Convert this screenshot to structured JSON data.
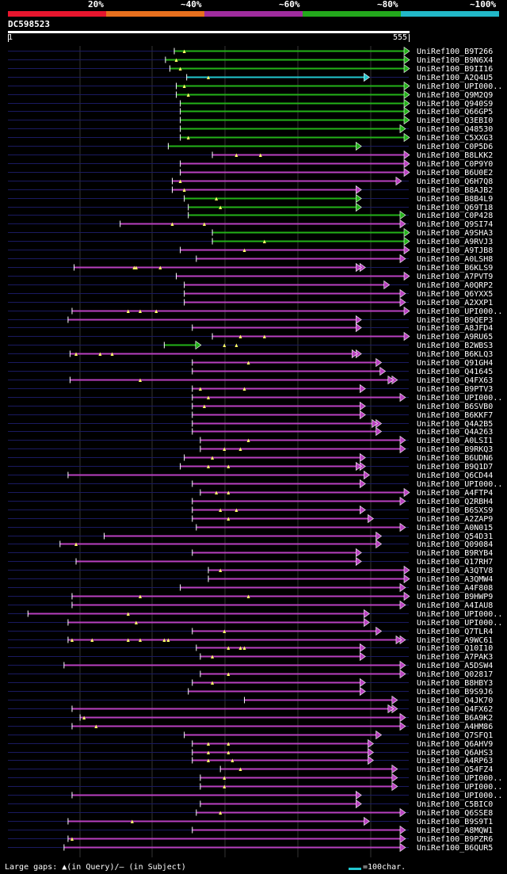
{
  "legend": {
    "segments": [
      {
        "color": "#e8162e",
        "label": "20%"
      },
      {
        "color": "#e8701e",
        "label": "~40%"
      },
      {
        "color": "#a02c9e",
        "label": "~60%"
      },
      {
        "color": "#23a81c",
        "label": "~80%"
      },
      {
        "color": "#22b8c8",
        "label": "~100%"
      }
    ]
  },
  "query": {
    "id": "DC598523",
    "start": "1",
    "end": "555"
  },
  "colors": {
    "green": "#23b219",
    "magenta": "#b940c0",
    "cyan": "#22c8d0",
    "backbone": "#1a1a60",
    "grid": "#333333"
  },
  "hits": [
    {
      "label": "UniRef100_B9T266",
      "color": "green",
      "start": 0.415,
      "end": 1.0,
      "ends": 1,
      "gaps": [
        0.44
      ]
    },
    {
      "label": "UniRef100_B9N6X4",
      "color": "green",
      "start": 0.393,
      "end": 1.0,
      "ends": 1,
      "gaps": [
        0.42
      ]
    },
    {
      "label": "UniRef100_B9II16",
      "color": "green",
      "start": 0.404,
      "end": 1.0,
      "ends": 1,
      "gaps": [
        0.43
      ]
    },
    {
      "label": "UniRef100_A2Q4U5",
      "color": "cyan",
      "start": 0.446,
      "end": 0.9,
      "ends": 1,
      "gaps": [
        0.5
      ]
    },
    {
      "label": "UniRef100_UPI000..",
      "color": "green",
      "start": 0.42,
      "end": 1.0,
      "ends": 1,
      "gaps": [
        0.44
      ]
    },
    {
      "label": "UniRef100_Q9M2Q9",
      "color": "green",
      "start": 0.42,
      "end": 1.0,
      "ends": 1,
      "gaps": [
        0.45
      ]
    },
    {
      "label": "UniRef100_Q940S9",
      "color": "green",
      "start": 0.43,
      "end": 1.0,
      "ends": 1,
      "gaps": []
    },
    {
      "label": "UniRef100_Q66GP5",
      "color": "green",
      "start": 0.43,
      "end": 1.0,
      "ends": 1,
      "gaps": []
    },
    {
      "label": "UniRef100_Q3EBI0",
      "color": "green",
      "start": 0.43,
      "end": 1.0,
      "ends": 1,
      "gaps": []
    },
    {
      "label": "UniRef100_Q48530",
      "color": "green",
      "start": 0.43,
      "end": 0.99,
      "ends": 1,
      "gaps": []
    },
    {
      "label": "UniRef100_C5XXG3",
      "color": "green",
      "start": 0.43,
      "end": 1.0,
      "ends": 1,
      "gaps": [
        0.45
      ]
    },
    {
      "label": "UniRef100_C0P5D6",
      "color": "green",
      "start": 0.4,
      "end": 0.88,
      "ends": 1,
      "gaps": []
    },
    {
      "label": "UniRef100_B8LKK2",
      "color": "magenta",
      "start": 0.51,
      "end": 1.0,
      "ends": 1,
      "gaps": [
        0.57,
        0.63
      ]
    },
    {
      "label": "UniRef100_C0P9Y0",
      "color": "magenta",
      "start": 0.43,
      "end": 1.0,
      "ends": 1,
      "gaps": []
    },
    {
      "label": "UniRef100_B6U0E2",
      "color": "magenta",
      "start": 0.43,
      "end": 1.0,
      "ends": 1,
      "gaps": []
    },
    {
      "label": "UniRef100_Q6H7Q8",
      "color": "magenta",
      "start": 0.41,
      "end": 0.98,
      "ends": 1,
      "gaps": [
        0.43
      ]
    },
    {
      "label": "UniRef100_B8AJB2",
      "color": "magenta",
      "start": 0.41,
      "end": 0.88,
      "ends": 1,
      "gaps": [
        0.44
      ]
    },
    {
      "label": "UniRef100_B8B4L9",
      "color": "green",
      "start": 0.44,
      "end": 0.88,
      "ends": 1,
      "gaps": [
        0.52
      ]
    },
    {
      "label": "UniRef100_Q69T18",
      "color": "green",
      "start": 0.45,
      "end": 0.88,
      "ends": 1,
      "gaps": [
        0.53
      ]
    },
    {
      "label": "UniRef100_C0P428",
      "color": "green",
      "start": 0.45,
      "end": 0.99,
      "ends": 1,
      "gaps": []
    },
    {
      "label": "UniRef100_Q9SI74",
      "color": "magenta",
      "start": 0.28,
      "end": 0.99,
      "ends": 1,
      "gaps": [
        0.41,
        0.49
      ]
    },
    {
      "label": "UniRef100_A9SHA3",
      "color": "green",
      "start": 0.51,
      "end": 1.0,
      "ends": 1,
      "gaps": []
    },
    {
      "label": "UniRef100_A9RVJ3",
      "color": "green",
      "start": 0.51,
      "end": 1.0,
      "ends": 1,
      "gaps": [
        0.64
      ]
    },
    {
      "label": "UniRef100_A9TJB8",
      "color": "magenta",
      "start": 0.43,
      "end": 1.0,
      "ends": 1,
      "gaps": [
        0.59
      ]
    },
    {
      "label": "UniRef100_A0LSH8",
      "color": "magenta",
      "start": 0.47,
      "end": 0.99,
      "ends": 1,
      "gaps": []
    },
    {
      "label": "UniRef100_B6KLS9",
      "color": "magenta",
      "start": 0.165,
      "end": 0.89,
      "ends": 2,
      "gaps": [
        0.315,
        0.32,
        0.38
      ]
    },
    {
      "label": "UniRef100_A7PVT9",
      "color": "magenta",
      "start": 0.42,
      "end": 1.0,
      "ends": 1,
      "gaps": []
    },
    {
      "label": "UniRef100_A0QRP2",
      "color": "magenta",
      "start": 0.44,
      "end": 0.95,
      "ends": 1,
      "gaps": []
    },
    {
      "label": "UniRef100_Q6YXX5",
      "color": "magenta",
      "start": 0.44,
      "end": 0.99,
      "ends": 1,
      "gaps": []
    },
    {
      "label": "UniRef100_A2XXP1",
      "color": "magenta",
      "start": 0.44,
      "end": 0.99,
      "ends": 1,
      "gaps": []
    },
    {
      "label": "UniRef100_UPI000..",
      "color": "magenta",
      "start": 0.16,
      "end": 1.0,
      "ends": 1,
      "gaps": [
        0.3,
        0.33,
        0.37
      ]
    },
    {
      "label": "UniRef100_B9QEP3",
      "color": "magenta",
      "start": 0.15,
      "end": 0.88,
      "ends": 1,
      "gaps": []
    },
    {
      "label": "UniRef100_A8JFD4",
      "color": "magenta",
      "start": 0.46,
      "end": 0.88,
      "ends": 1,
      "gaps": []
    },
    {
      "label": "UniRef100_A9RU65",
      "color": "magenta",
      "start": 0.51,
      "end": 1.0,
      "ends": 1,
      "gaps": [
        0.58,
        0.64
      ]
    },
    {
      "label": "UniRef100_B2WBS3",
      "color": "green",
      "start": 0.39,
      "end": 0.48,
      "ends": 1,
      "gaps": [
        0.54,
        0.57
      ]
    },
    {
      "label": "UniRef100_B6KLQ3",
      "color": "magenta",
      "start": 0.155,
      "end": 0.88,
      "ends": 2,
      "gaps": [
        0.17,
        0.23,
        0.26
      ]
    },
    {
      "label": "UniRef100_Q91GH4",
      "color": "magenta",
      "start": 0.46,
      "end": 0.93,
      "ends": 1,
      "gaps": [
        0.6
      ]
    },
    {
      "label": "UniRef100_Q41645",
      "color": "magenta",
      "start": 0.46,
      "end": 0.94,
      "ends": 1,
      "gaps": []
    },
    {
      "label": "UniRef100_Q4FX63",
      "color": "magenta",
      "start": 0.155,
      "end": 0.97,
      "ends": 2,
      "gaps": [
        0.33
      ]
    },
    {
      "label": "UniRef100_B9PTV3",
      "color": "magenta",
      "start": 0.46,
      "end": 0.89,
      "ends": 1,
      "gaps": [
        0.48,
        0.59
      ]
    },
    {
      "label": "UniRef100_UPI000..",
      "color": "magenta",
      "start": 0.46,
      "end": 0.99,
      "ends": 1,
      "gaps": [
        0.5
      ]
    },
    {
      "label": "UniRef100_B6SVB0",
      "color": "magenta",
      "start": 0.46,
      "end": 0.89,
      "ends": 1,
      "gaps": [
        0.49
      ]
    },
    {
      "label": "UniRef100_B6KKF7",
      "color": "magenta",
      "start": 0.46,
      "end": 0.89,
      "ends": 1,
      "gaps": []
    },
    {
      "label": "UniRef100_Q4A2B5",
      "color": "magenta",
      "start": 0.46,
      "end": 0.93,
      "ends": 2,
      "gaps": []
    },
    {
      "label": "UniRef100_Q4A263",
      "color": "magenta",
      "start": 0.46,
      "end": 0.93,
      "ends": 1,
      "gaps": []
    },
    {
      "label": "UniRef100_A0LSI1",
      "color": "magenta",
      "start": 0.48,
      "end": 0.99,
      "ends": 1,
      "gaps": [
        0.6
      ]
    },
    {
      "label": "UniRef100_B9RKQ3",
      "color": "magenta",
      "start": 0.48,
      "end": 0.99,
      "ends": 1,
      "gaps": [
        0.54,
        0.58
      ]
    },
    {
      "label": "UniRef100_B6UDN6",
      "color": "magenta",
      "start": 0.44,
      "end": 0.89,
      "ends": 1,
      "gaps": [
        0.51
      ]
    },
    {
      "label": "UniRef100_B9Q1D7",
      "color": "magenta",
      "start": 0.43,
      "end": 0.89,
      "ends": 2,
      "gaps": [
        0.5,
        0.55
      ]
    },
    {
      "label": "UniRef100_Q6CD44",
      "color": "magenta",
      "start": 0.15,
      "end": 0.9,
      "ends": 1,
      "gaps": []
    },
    {
      "label": "UniRef100_UPI000..",
      "color": "magenta",
      "start": 0.46,
      "end": 0.89,
      "ends": 1,
      "gaps": []
    },
    {
      "label": "UniRef100_A4FTP4",
      "color": "magenta",
      "start": 0.48,
      "end": 1.0,
      "ends": 1,
      "gaps": [
        0.52,
        0.55
      ]
    },
    {
      "label": "UniRef100_Q2RBH4",
      "color": "magenta",
      "start": 0.46,
      "end": 0.99,
      "ends": 1,
      "gaps": []
    },
    {
      "label": "UniRef100_B6SXS9",
      "color": "magenta",
      "start": 0.46,
      "end": 0.89,
      "ends": 1,
      "gaps": [
        0.53,
        0.57
      ]
    },
    {
      "label": "UniRef100_A2ZAP9",
      "color": "magenta",
      "start": 0.46,
      "end": 0.91,
      "ends": 1,
      "gaps": [
        0.55
      ]
    },
    {
      "label": "UniRef100_A0N015",
      "color": "magenta",
      "start": 0.47,
      "end": 0.99,
      "ends": 1,
      "gaps": []
    },
    {
      "label": "UniRef100_Q54D31",
      "color": "magenta",
      "start": 0.24,
      "end": 0.93,
      "ends": 1,
      "gaps": []
    },
    {
      "label": "UniRef100_Q09084",
      "color": "magenta",
      "start": 0.13,
      "end": 0.93,
      "ends": 1,
      "gaps": [
        0.17
      ]
    },
    {
      "label": "UniRef100_B9RYB4",
      "color": "magenta",
      "start": 0.46,
      "end": 0.88,
      "ends": 1,
      "gaps": []
    },
    {
      "label": "UniRef100_Q17RH7",
      "color": "magenta",
      "start": 0.17,
      "end": 0.88,
      "ends": 1,
      "gaps": []
    },
    {
      "label": "UniRef100_A3QTV8",
      "color": "magenta",
      "start": 0.5,
      "end": 1.0,
      "ends": 1,
      "gaps": [
        0.53
      ]
    },
    {
      "label": "UniRef100_A3QMW4",
      "color": "magenta",
      "start": 0.5,
      "end": 1.0,
      "ends": 1,
      "gaps": []
    },
    {
      "label": "UniRef100_A4F808",
      "color": "magenta",
      "start": 0.43,
      "end": 0.99,
      "ends": 1,
      "gaps": []
    },
    {
      "label": "UniRef100_B9HWP9",
      "color": "magenta",
      "start": 0.16,
      "end": 1.0,
      "ends": 1,
      "gaps": [
        0.33,
        0.6
      ]
    },
    {
      "label": "UniRef100_A4IAU8",
      "color": "magenta",
      "start": 0.16,
      "end": 0.99,
      "ends": 1,
      "gaps": []
    },
    {
      "label": "UniRef100_UPI000..",
      "color": "magenta",
      "start": 0.05,
      "end": 0.9,
      "ends": 1,
      "gaps": [
        0.3
      ]
    },
    {
      "label": "UniRef100_UPI000..",
      "color": "magenta",
      "start": 0.15,
      "end": 0.9,
      "ends": 1,
      "gaps": [
        0.32
      ]
    },
    {
      "label": "UniRef100_Q7TLR4",
      "color": "magenta",
      "start": 0.46,
      "end": 0.93,
      "ends": 1,
      "gaps": [
        0.54
      ]
    },
    {
      "label": "UniRef100_A9WC61",
      "color": "magenta",
      "start": 0.15,
      "end": 0.99,
      "ends": 2,
      "gaps": [
        0.16,
        0.21,
        0.3,
        0.33,
        0.39,
        0.4
      ]
    },
    {
      "label": "UniRef100_Q10I10",
      "color": "magenta",
      "start": 0.47,
      "end": 0.89,
      "ends": 1,
      "gaps": [
        0.55,
        0.58,
        0.59
      ]
    },
    {
      "label": "UniRef100_A7PAK3",
      "color": "magenta",
      "start": 0.48,
      "end": 0.89,
      "ends": 1,
      "gaps": [
        0.51
      ]
    },
    {
      "label": "UniRef100_A5DSW4",
      "color": "magenta",
      "start": 0.14,
      "end": 0.99,
      "ends": 1,
      "gaps": []
    },
    {
      "label": "UniRef100_Q02817",
      "color": "magenta",
      "start": 0.48,
      "end": 0.99,
      "ends": 1,
      "gaps": [
        0.55
      ]
    },
    {
      "label": "UniRef100_B8HBY3",
      "color": "magenta",
      "start": 0.46,
      "end": 0.89,
      "ends": 1,
      "gaps": [
        0.51
      ]
    },
    {
      "label": "UniRef100_B9S9J6",
      "color": "magenta",
      "start": 0.45,
      "end": 0.89,
      "ends": 1,
      "gaps": []
    },
    {
      "label": "UniRef100_Q4JK70",
      "color": "magenta",
      "start": 0.59,
      "end": 0.97,
      "ends": 1,
      "gaps": []
    },
    {
      "label": "UniRef100_Q4FX62",
      "color": "magenta",
      "start": 0.16,
      "end": 0.97,
      "ends": 2,
      "gaps": []
    },
    {
      "label": "UniRef100_B6A9K2",
      "color": "magenta",
      "start": 0.18,
      "end": 0.99,
      "ends": 1,
      "gaps": [
        0.19
      ]
    },
    {
      "label": "UniRef100_A4HM86",
      "color": "magenta",
      "start": 0.16,
      "end": 0.99,
      "ends": 1,
      "gaps": [
        0.22
      ]
    },
    {
      "label": "UniRef100_Q7SFQ1",
      "color": "magenta",
      "start": 0.44,
      "end": 0.93,
      "ends": 1,
      "gaps": []
    },
    {
      "label": "UniRef100_Q6AHV9",
      "color": "magenta",
      "start": 0.46,
      "end": 0.91,
      "ends": 1,
      "gaps": [
        0.5,
        0.55
      ]
    },
    {
      "label": "UniRef100_Q6AHS3",
      "color": "magenta",
      "start": 0.46,
      "end": 0.91,
      "ends": 1,
      "gaps": [
        0.5,
        0.55
      ]
    },
    {
      "label": "UniRef100_A4RP63",
      "color": "magenta",
      "start": 0.46,
      "end": 0.91,
      "ends": 1,
      "gaps": [
        0.5,
        0.56
      ]
    },
    {
      "label": "UniRef100_Q54FZ4",
      "color": "magenta",
      "start": 0.53,
      "end": 0.97,
      "ends": 1,
      "gaps": [
        0.58
      ]
    },
    {
      "label": "UniRef100_UPI000..",
      "color": "magenta",
      "start": 0.48,
      "end": 0.97,
      "ends": 1,
      "gaps": [
        0.54
      ]
    },
    {
      "label": "UniRef100_UPI000..",
      "color": "magenta",
      "start": 0.48,
      "end": 0.97,
      "ends": 1,
      "gaps": [
        0.54
      ]
    },
    {
      "label": "UniRef100_UPI000..",
      "color": "magenta",
      "start": 0.16,
      "end": 0.88,
      "ends": 1,
      "gaps": []
    },
    {
      "label": "UniRef100_C5BIC0",
      "color": "magenta",
      "start": 0.48,
      "end": 0.88,
      "ends": 1,
      "gaps": []
    },
    {
      "label": "UniRef100_Q6SSE8",
      "color": "magenta",
      "start": 0.47,
      "end": 0.99,
      "ends": 1,
      "gaps": [
        0.53
      ]
    },
    {
      "label": "UniRef100_B9S9T1",
      "color": "magenta",
      "start": 0.15,
      "end": 0.9,
      "ends": 1,
      "gaps": [
        0.31
      ]
    },
    {
      "label": "UniRef100_A8MQW1",
      "color": "magenta",
      "start": 0.46,
      "end": 0.99,
      "ends": 1,
      "gaps": []
    },
    {
      "label": "UniRef100_B9PZR6",
      "color": "magenta",
      "start": 0.15,
      "end": 0.99,
      "ends": 1,
      "gaps": [
        0.16
      ]
    },
    {
      "label": "UniRef100_B6QUR5",
      "color": "magenta",
      "start": 0.14,
      "end": 0.99,
      "ends": 1,
      "gaps": []
    }
  ],
  "footer": {
    "gaps_text": "Large gaps: ▲(in Query)/– (in Subject)",
    "scale_text": "=100char."
  }
}
